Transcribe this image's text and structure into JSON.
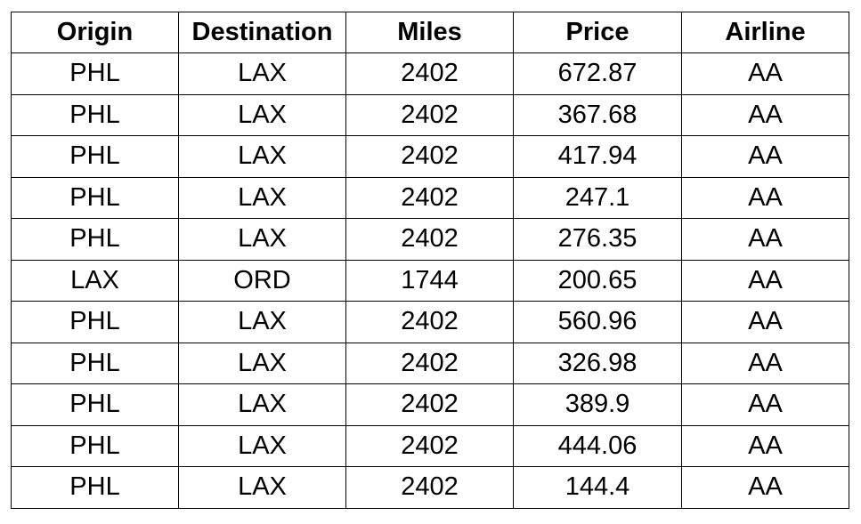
{
  "table": {
    "headers": [
      "Origin",
      "Destination",
      "Miles",
      "Price",
      "Airline"
    ],
    "rows": [
      [
        "PHL",
        "LAX",
        "2402",
        "672.87",
        "AA"
      ],
      [
        "PHL",
        "LAX",
        "2402",
        "367.68",
        "AA"
      ],
      [
        "PHL",
        "LAX",
        "2402",
        "417.94",
        "AA"
      ],
      [
        "PHL",
        "LAX",
        "2402",
        "247.1",
        "AA"
      ],
      [
        "PHL",
        "LAX",
        "2402",
        "276.35",
        "AA"
      ],
      [
        "LAX",
        "ORD",
        "1744",
        "200.65",
        "AA"
      ],
      [
        "PHL",
        "LAX",
        "2402",
        "560.96",
        "AA"
      ],
      [
        "PHL",
        "LAX",
        "2402",
        "326.98",
        "AA"
      ],
      [
        "PHL",
        "LAX",
        "2402",
        "389.9",
        "AA"
      ],
      [
        "PHL",
        "LAX",
        "2402",
        "444.06",
        "AA"
      ],
      [
        "PHL",
        "LAX",
        "2402",
        "144.4",
        "AA"
      ]
    ]
  }
}
